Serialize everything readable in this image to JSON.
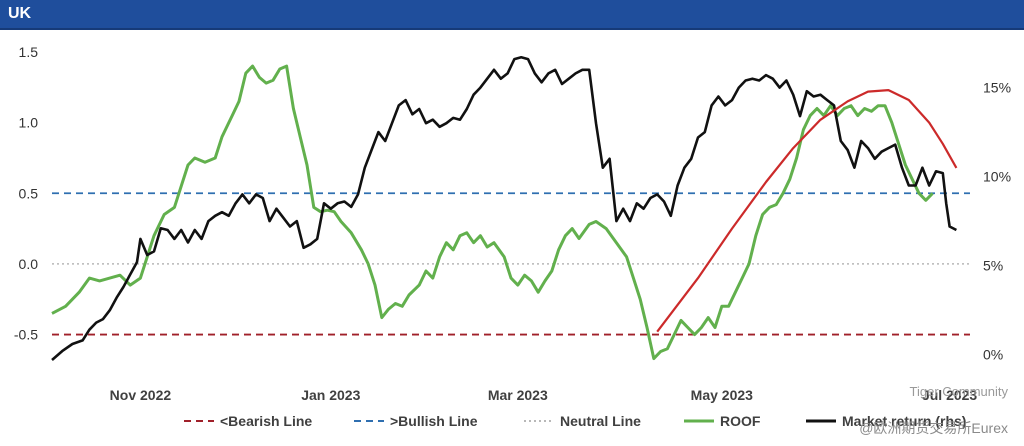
{
  "header": {
    "title": "UK"
  },
  "watermark": {
    "line1": "Tiger Community",
    "line2": "@欧洲期货交易所Eurex"
  },
  "chart_data": {
    "type": "line",
    "title": "UK",
    "y_left": {
      "ticks": [
        "1.5",
        "1.0",
        "0.5",
        "0.0",
        "-0.5"
      ],
      "range": [
        -0.68,
        1.5
      ]
    },
    "y_right": {
      "ticks": [
        "15%",
        "10%",
        "5%",
        "0%"
      ],
      "range": [
        -0.3,
        17.0
      ]
    },
    "x_ticks": [
      {
        "label": "Nov 2022",
        "day": 26
      },
      {
        "label": "Jan 2023",
        "day": 82
      },
      {
        "label": "Mar 2023",
        "day": 137
      },
      {
        "label": "May 2023",
        "day": 197
      },
      {
        "label": "Jul 2023",
        "day": 264
      }
    ],
    "x_range": [
      0,
      270
    ],
    "reference_lines": [
      {
        "name": "<Bearish Line",
        "value": -0.5,
        "color": "#a0202a",
        "dash": "dashed"
      },
      {
        "name": ">Bullish Line",
        "value": 0.5,
        "color": "#2f6fb0",
        "dash": "dashed"
      },
      {
        "name": "Neutral Line",
        "value": 0.0,
        "color": "#b8b8b8",
        "dash": "dotted"
      }
    ],
    "series": [
      {
        "name": "ROOF",
        "axis": "left",
        "color": "#62b04d",
        "points": [
          [
            0,
            -0.35
          ],
          [
            4,
            -0.3
          ],
          [
            8,
            -0.2
          ],
          [
            11,
            -0.1
          ],
          [
            14,
            -0.12
          ],
          [
            17,
            -0.1
          ],
          [
            20,
            -0.08
          ],
          [
            23,
            -0.15
          ],
          [
            26,
            -0.1
          ],
          [
            28,
            0.05
          ],
          [
            30,
            0.2
          ],
          [
            33,
            0.35
          ],
          [
            36,
            0.4
          ],
          [
            38,
            0.55
          ],
          [
            40,
            0.7
          ],
          [
            42,
            0.75
          ],
          [
            45,
            0.72
          ],
          [
            48,
            0.75
          ],
          [
            50,
            0.9
          ],
          [
            53,
            1.05
          ],
          [
            55,
            1.15
          ],
          [
            57,
            1.35
          ],
          [
            59,
            1.4
          ],
          [
            61,
            1.32
          ],
          [
            63,
            1.28
          ],
          [
            65,
            1.3
          ],
          [
            67,
            1.38
          ],
          [
            69,
            1.4
          ],
          [
            71,
            1.1
          ],
          [
            73,
            0.9
          ],
          [
            75,
            0.7
          ],
          [
            77,
            0.4
          ],
          [
            79,
            0.37
          ],
          [
            81,
            0.38
          ],
          [
            83,
            0.37
          ],
          [
            85,
            0.3
          ],
          [
            88,
            0.22
          ],
          [
            91,
            0.1
          ],
          [
            93,
            0.0
          ],
          [
            95,
            -0.15
          ],
          [
            97,
            -0.38
          ],
          [
            99,
            -0.32
          ],
          [
            101,
            -0.28
          ],
          [
            103,
            -0.3
          ],
          [
            105,
            -0.22
          ],
          [
            108,
            -0.15
          ],
          [
            110,
            -0.05
          ],
          [
            112,
            -0.1
          ],
          [
            114,
            0.05
          ],
          [
            116,
            0.15
          ],
          [
            118,
            0.1
          ],
          [
            120,
            0.2
          ],
          [
            122,
            0.22
          ],
          [
            124,
            0.15
          ],
          [
            126,
            0.2
          ],
          [
            128,
            0.12
          ],
          [
            130,
            0.15
          ],
          [
            133,
            0.05
          ],
          [
            135,
            -0.1
          ],
          [
            137,
            -0.15
          ],
          [
            139,
            -0.08
          ],
          [
            141,
            -0.12
          ],
          [
            143,
            -0.2
          ],
          [
            145,
            -0.12
          ],
          [
            147,
            -0.05
          ],
          [
            149,
            0.1
          ],
          [
            151,
            0.2
          ],
          [
            153,
            0.25
          ],
          [
            155,
            0.18
          ],
          [
            158,
            0.28
          ],
          [
            160,
            0.3
          ],
          [
            163,
            0.25
          ],
          [
            166,
            0.15
          ],
          [
            169,
            0.05
          ],
          [
            171,
            -0.1
          ],
          [
            173,
            -0.25
          ],
          [
            175,
            -0.45
          ],
          [
            177,
            -0.67
          ],
          [
            179,
            -0.62
          ],
          [
            181,
            -0.6
          ],
          [
            183,
            -0.5
          ],
          [
            185,
            -0.4
          ],
          [
            187,
            -0.45
          ],
          [
            189,
            -0.5
          ],
          [
            191,
            -0.45
          ],
          [
            193,
            -0.38
          ],
          [
            195,
            -0.45
          ],
          [
            197,
            -0.3
          ],
          [
            199,
            -0.3
          ],
          [
            201,
            -0.2
          ],
          [
            203,
            -0.1
          ],
          [
            205,
            0.0
          ],
          [
            207,
            0.2
          ],
          [
            209,
            0.35
          ],
          [
            211,
            0.4
          ],
          [
            213,
            0.42
          ],
          [
            215,
            0.5
          ],
          [
            217,
            0.6
          ],
          [
            219,
            0.75
          ],
          [
            221,
            0.95
          ],
          [
            223,
            1.05
          ],
          [
            225,
            1.1
          ],
          [
            227,
            1.05
          ],
          [
            229,
            1.12
          ],
          [
            231,
            1.05
          ],
          [
            233,
            1.1
          ],
          [
            235,
            1.12
          ],
          [
            237,
            1.05
          ],
          [
            239,
            1.1
          ],
          [
            241,
            1.08
          ],
          [
            243,
            1.12
          ],
          [
            245,
            1.12
          ],
          [
            247,
            1.0
          ],
          [
            249,
            0.85
          ],
          [
            251,
            0.7
          ],
          [
            253,
            0.6
          ],
          [
            255,
            0.5
          ],
          [
            257,
            0.45
          ],
          [
            259,
            0.5
          ]
        ]
      },
      {
        "name": "Market return (rhs)",
        "axis": "right",
        "color": "#111111",
        "points": [
          [
            0,
            -0.3
          ],
          [
            3,
            0.2
          ],
          [
            6,
            0.6
          ],
          [
            9,
            0.8
          ],
          [
            11,
            1.4
          ],
          [
            13,
            1.8
          ],
          [
            15,
            2.0
          ],
          [
            17,
            2.5
          ],
          [
            19,
            3.2
          ],
          [
            21,
            3.8
          ],
          [
            23,
            4.5
          ],
          [
            25,
            5.2
          ],
          [
            26,
            6.5
          ],
          [
            28,
            5.6
          ],
          [
            30,
            5.8
          ],
          [
            32,
            7.1
          ],
          [
            34,
            7.0
          ],
          [
            36,
            6.5
          ],
          [
            38,
            7.0
          ],
          [
            40,
            6.3
          ],
          [
            42,
            7.0
          ],
          [
            44,
            6.5
          ],
          [
            46,
            7.5
          ],
          [
            48,
            7.8
          ],
          [
            50,
            8.0
          ],
          [
            52,
            7.8
          ],
          [
            54,
            8.5
          ],
          [
            56,
            9.0
          ],
          [
            58,
            8.5
          ],
          [
            60,
            9.0
          ],
          [
            62,
            8.8
          ],
          [
            64,
            7.5
          ],
          [
            66,
            8.2
          ],
          [
            68,
            7.7
          ],
          [
            70,
            7.2
          ],
          [
            72,
            7.5
          ],
          [
            74,
            6.0
          ],
          [
            76,
            6.2
          ],
          [
            78,
            6.5
          ],
          [
            80,
            8.5
          ],
          [
            82,
            8.2
          ],
          [
            84,
            8.5
          ],
          [
            86,
            8.6
          ],
          [
            88,
            8.3
          ],
          [
            90,
            9.0
          ],
          [
            92,
            10.5
          ],
          [
            94,
            11.5
          ],
          [
            96,
            12.5
          ],
          [
            98,
            12.0
          ],
          [
            100,
            13.0
          ],
          [
            102,
            14.0
          ],
          [
            104,
            14.3
          ],
          [
            106,
            13.5
          ],
          [
            108,
            13.8
          ],
          [
            110,
            13.0
          ],
          [
            112,
            13.2
          ],
          [
            114,
            12.8
          ],
          [
            116,
            13.0
          ],
          [
            118,
            13.3
          ],
          [
            120,
            13.2
          ],
          [
            122,
            13.8
          ],
          [
            124,
            14.6
          ],
          [
            126,
            15.0
          ],
          [
            128,
            15.5
          ],
          [
            130,
            16.0
          ],
          [
            132,
            15.5
          ],
          [
            134,
            15.8
          ],
          [
            136,
            16.6
          ],
          [
            138,
            16.7
          ],
          [
            140,
            16.6
          ],
          [
            142,
            15.8
          ],
          [
            144,
            15.3
          ],
          [
            146,
            15.8
          ],
          [
            148,
            16.0
          ],
          [
            150,
            15.2
          ],
          [
            152,
            15.5
          ],
          [
            154,
            15.8
          ],
          [
            156,
            16.0
          ],
          [
            158,
            16.0
          ],
          [
            160,
            13.0
          ],
          [
            162,
            10.5
          ],
          [
            164,
            11.0
          ],
          [
            166,
            7.5
          ],
          [
            168,
            8.2
          ],
          [
            170,
            7.5
          ],
          [
            172,
            8.5
          ],
          [
            174,
            8.2
          ],
          [
            176,
            8.8
          ],
          [
            178,
            9.0
          ],
          [
            180,
            8.6
          ],
          [
            182,
            7.8
          ],
          [
            184,
            9.5
          ],
          [
            186,
            10.5
          ],
          [
            188,
            11.0
          ],
          [
            190,
            12.2
          ],
          [
            192,
            12.5
          ],
          [
            194,
            14.0
          ],
          [
            196,
            14.5
          ],
          [
            198,
            14.0
          ],
          [
            200,
            14.3
          ],
          [
            202,
            15.0
          ],
          [
            204,
            15.4
          ],
          [
            206,
            15.5
          ],
          [
            208,
            15.4
          ],
          [
            210,
            15.7
          ],
          [
            212,
            15.5
          ],
          [
            214,
            15.0
          ],
          [
            216,
            15.4
          ],
          [
            218,
            14.6
          ],
          [
            220,
            13.4
          ],
          [
            222,
            14.8
          ],
          [
            224,
            14.5
          ],
          [
            226,
            14.6
          ],
          [
            228,
            14.3
          ],
          [
            230,
            14.0
          ],
          [
            232,
            12.0
          ],
          [
            234,
            11.5
          ],
          [
            236,
            10.5
          ],
          [
            238,
            12.0
          ],
          [
            240,
            11.6
          ],
          [
            242,
            11.0
          ],
          [
            244,
            11.4
          ],
          [
            246,
            11.6
          ],
          [
            248,
            11.8
          ],
          [
            250,
            10.5
          ],
          [
            252,
            9.5
          ],
          [
            254,
            9.5
          ],
          [
            256,
            10.5
          ],
          [
            258,
            9.5
          ],
          [
            260,
            10.3
          ],
          [
            262,
            10.2
          ],
          [
            263,
            8.5
          ],
          [
            264,
            7.2
          ],
          [
            266,
            7.0
          ]
        ]
      }
    ],
    "annotation_arc": {
      "color": "#cc2a2a",
      "points": [
        [
          178,
          -0.48
        ],
        [
          190,
          -0.1
        ],
        [
          200,
          0.25
        ],
        [
          210,
          0.58
        ],
        [
          218,
          0.82
        ],
        [
          226,
          1.02
        ],
        [
          234,
          1.15
        ],
        [
          240,
          1.22
        ],
        [
          246,
          1.23
        ],
        [
          252,
          1.16
        ],
        [
          258,
          1.0
        ],
        [
          262,
          0.85
        ],
        [
          266,
          0.68
        ]
      ]
    },
    "legend": [
      {
        "label": "<Bearish Line",
        "style": "dashed",
        "color": "#a0202a"
      },
      {
        "label": ">Bullish Line",
        "style": "dashed",
        "color": "#2f6fb0"
      },
      {
        "label": "Neutral Line",
        "style": "dotted",
        "color": "#b8b8b8"
      },
      {
        "label": "ROOF",
        "style": "solid",
        "color": "#62b04d"
      },
      {
        "label": "Market return (rhs)",
        "style": "solid",
        "color": "#111111"
      }
    ]
  }
}
